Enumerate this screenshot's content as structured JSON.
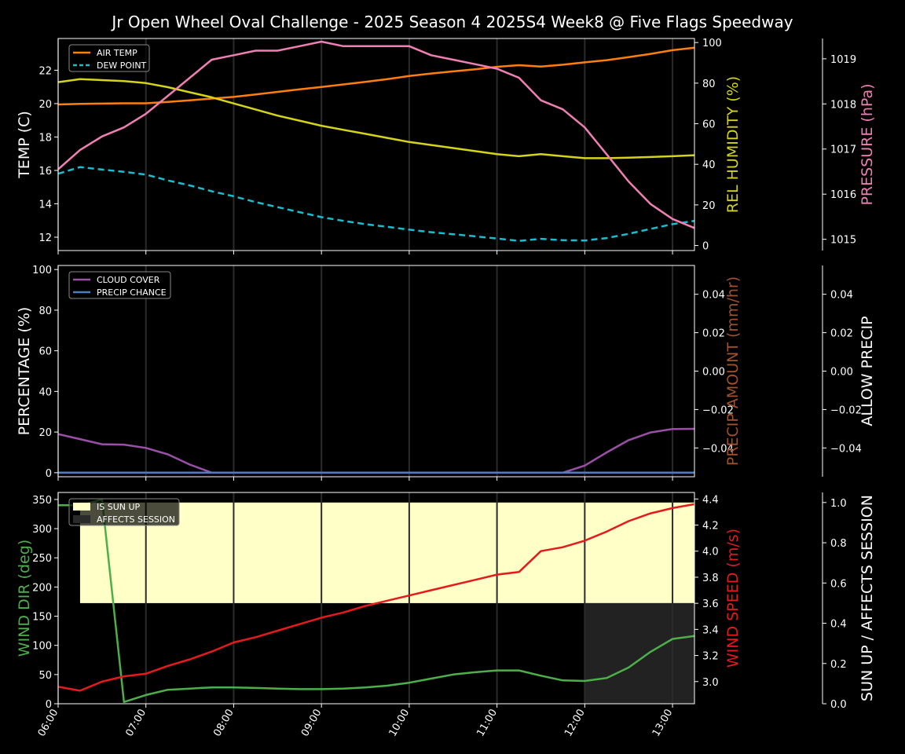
{
  "chart_data": {
    "title": "Jr Open Wheel Oval Challenge - 2025 Season 4 2025S4 Week8 @ Five Flags Speedway",
    "x_ticks": [
      "06:00",
      "07:00",
      "08:00",
      "09:00",
      "10:00",
      "11:00",
      "12:00",
      "13:00"
    ],
    "x_range": [
      "06:00",
      "13:15"
    ],
    "x": [
      "06:00",
      "06:15",
      "06:30",
      "06:45",
      "07:00",
      "07:15",
      "07:30",
      "07:45",
      "08:00",
      "08:15",
      "08:30",
      "08:45",
      "09:00",
      "09:15",
      "09:30",
      "09:45",
      "10:00",
      "10:15",
      "10:30",
      "10:45",
      "11:00",
      "11:15",
      "11:30",
      "11:45",
      "12:00",
      "12:15",
      "12:30",
      "12:45",
      "13:00",
      "13:15"
    ],
    "panels": [
      {
        "type": "line",
        "left_axis": {
          "label": "TEMP (C)",
          "color": "#ffffff",
          "range": [
            11.2,
            23.9
          ],
          "ticks": [
            12,
            14,
            16,
            18,
            20,
            22
          ]
        },
        "right_axis": {
          "label": "REL HUMIDITY (%)",
          "color": "#d4d41a",
          "range": [
            -2.5,
            102
          ],
          "ticks": [
            0,
            20,
            40,
            60,
            80,
            100
          ]
        },
        "far_axis": {
          "label": "PRESSURE (hPa)",
          "color": "#f07fb4",
          "range": [
            1014.75,
            1019.45
          ],
          "ticks": [
            1015,
            1016,
            1017,
            1018,
            1019
          ]
        },
        "legend": {
          "position": "top-left",
          "entries": [
            {
              "label": "AIR TEMP",
              "color": "#ff7f0e",
              "dash": false
            },
            {
              "label": "DEW POINT",
              "color": "#17becf",
              "dash": true
            }
          ]
        },
        "series": [
          {
            "name": "AIR TEMP",
            "axis": "left",
            "color": "#ff7f0e",
            "dash": false,
            "values": [
              19.95,
              19.98,
              20.0,
              20.02,
              20.02,
              20.1,
              20.2,
              20.3,
              20.4,
              20.55,
              20.7,
              20.85,
              21.0,
              21.15,
              21.3,
              21.47,
              21.65,
              21.8,
              21.93,
              22.05,
              22.2,
              22.3,
              22.22,
              22.33,
              22.47,
              22.6,
              22.78,
              22.98,
              23.2,
              23.35
            ]
          },
          {
            "name": "DEW POINT",
            "axis": "left",
            "color": "#17becf",
            "dash": true,
            "values": [
              15.8,
              16.2,
              16.05,
              15.92,
              15.75,
              15.4,
              15.1,
              14.75,
              14.45,
              14.1,
              13.8,
              13.5,
              13.2,
              12.98,
              12.78,
              12.62,
              12.45,
              12.3,
              12.18,
              12.05,
              11.92,
              11.78,
              11.9,
              11.82,
              11.8,
              11.95,
              12.2,
              12.5,
              12.78,
              12.98
            ]
          },
          {
            "name": "REL HUMIDITY",
            "axis": "right",
            "color": "#d4d41a",
            "dash": false,
            "values": [
              80.5,
              82,
              81.5,
              81,
              80,
              78,
              75.5,
              73,
              70,
              67,
              64,
              61.5,
              59,
              57,
              55,
              53,
              51,
              49.5,
              48,
              46.5,
              45,
              44,
              45,
              44,
              43,
              43,
              43.3,
              43.6,
              44,
              44.5
            ]
          },
          {
            "name": "PRESSURE",
            "axis": "far",
            "color": "#f07fb4",
            "dash": false,
            "values": [
              1016.55,
              1016.98,
              1017.28,
              1017.48,
              1017.78,
              1018.18,
              1018.58,
              1018.98,
              1019.08,
              1019.18,
              1019.18,
              1019.28,
              1019.38,
              1019.28,
              1019.28,
              1019.28,
              1019.28,
              1019.08,
              1018.98,
              1018.88,
              1018.78,
              1018.58,
              1018.08,
              1017.88,
              1017.48,
              1016.88,
              1016.28,
              1015.78,
              1015.45,
              1015.25
            ]
          }
        ]
      },
      {
        "type": "line",
        "left_axis": {
          "label": "PERCENTAGE (%)",
          "color": "#ffffff",
          "range": [
            -2,
            102
          ],
          "ticks": [
            0,
            20,
            40,
            60,
            80,
            100
          ]
        },
        "right_axis": {
          "label": "PRECIP AMOUNT (mm/hr)",
          "color": "#a0522d",
          "range": [
            -0.055,
            0.055
          ],
          "ticks": [
            "−0.04",
            "−0.02",
            "0.00",
            "0.02",
            "0.04"
          ]
        },
        "far_axis": {
          "label": "ALLOW PRECIP",
          "color": "#ffffff",
          "range": [
            -0.055,
            0.055
          ],
          "ticks": [
            "−0.04",
            "−0.02",
            "0.00",
            "0.02",
            "0.04"
          ]
        },
        "legend": {
          "position": "top-left",
          "entries": [
            {
              "label": "CLOUD COVER",
              "color": "#9b4fa8",
              "dash": false
            },
            {
              "label": "PRECIP CHANCE",
              "color": "#4a7fc0",
              "dash": false
            }
          ]
        },
        "series": [
          {
            "name": "CLOUD COVER",
            "axis": "left",
            "color": "#9b4fa8",
            "dash": false,
            "values": [
              19,
              16.5,
              14,
              13.8,
              12.2,
              9,
              4,
              0,
              0,
              0,
              0,
              0,
              0,
              0,
              0,
              0,
              0,
              0,
              0,
              0,
              0,
              0,
              0,
              0,
              3.5,
              10,
              16,
              19.8,
              21.5,
              21.6
            ]
          },
          {
            "name": "PRECIP CHANCE",
            "axis": "left",
            "color": "#4a7fc0",
            "dash": false,
            "values": [
              0,
              0,
              0,
              0,
              0,
              0,
              0,
              0,
              0,
              0,
              0,
              0,
              0,
              0,
              0,
              0,
              0,
              0,
              0,
              0,
              0,
              0,
              0,
              0,
              0,
              0,
              0,
              0,
              0,
              0
            ]
          }
        ]
      },
      {
        "type": "line",
        "left_axis": {
          "label": "WIND DIR (deg)",
          "color": "#4daf4a",
          "range": [
            0,
            362
          ],
          "ticks": [
            0,
            50,
            100,
            150,
            200,
            250,
            300,
            350
          ]
        },
        "right_axis": {
          "label": "WIND SPEED (m/s)",
          "color": "#e41a1c",
          "range": [
            2.83,
            4.45
          ],
          "ticks": [
            "3.0",
            "3.2",
            "3.4",
            "3.6",
            "3.8",
            "4.0",
            "4.2",
            "4.4"
          ]
        },
        "far_axis": {
          "label": "SUN UP / AFFECTS SESSION",
          "color": "#ffffff",
          "range": [
            0,
            1.05
          ],
          "ticks": [
            "0.0",
            "0.2",
            "0.4",
            "0.6",
            "0.8",
            "1.0"
          ]
        },
        "legend": {
          "position": "top-left",
          "entries": [
            {
              "label": "IS SUN UP",
              "color": "#ffffc8",
              "dash": false
            },
            {
              "label": "AFFECTS SESSION",
              "color": "#2a2a2a",
              "dash": false
            }
          ]
        },
        "sun_up": {
          "start": "06:15",
          "end": "13:15",
          "level": 1.0,
          "color": "#ffffc8"
        },
        "affects_session": {
          "start": "12:00",
          "end": "13:15",
          "level": 0.5,
          "color": "#222222"
        },
        "series": [
          {
            "name": "WIND DIR",
            "axis": "left",
            "color": "#4daf4a",
            "dash": false,
            "values": [
              340,
              340,
              350,
              3,
              15,
              24,
              26,
              28,
              28,
              27,
              26,
              25,
              25,
              26,
              28,
              31,
              36,
              43,
              50,
              54,
              57,
              57,
              48,
              40,
              39,
              44,
              62,
              89,
              111,
              116
            ]
          },
          {
            "name": "WIND SPEED",
            "axis": "right",
            "color": "#e41a1c",
            "dash": false,
            "values": [
              2.96,
              2.93,
              3.0,
              3.04,
              3.06,
              3.12,
              3.17,
              3.23,
              3.3,
              3.34,
              3.39,
              3.44,
              3.49,
              3.53,
              3.58,
              3.62,
              3.66,
              3.7,
              3.74,
              3.78,
              3.82,
              3.84,
              4.0,
              4.03,
              4.08,
              4.15,
              4.23,
              4.29,
              4.33,
              4.36
            ]
          }
        ]
      }
    ]
  }
}
